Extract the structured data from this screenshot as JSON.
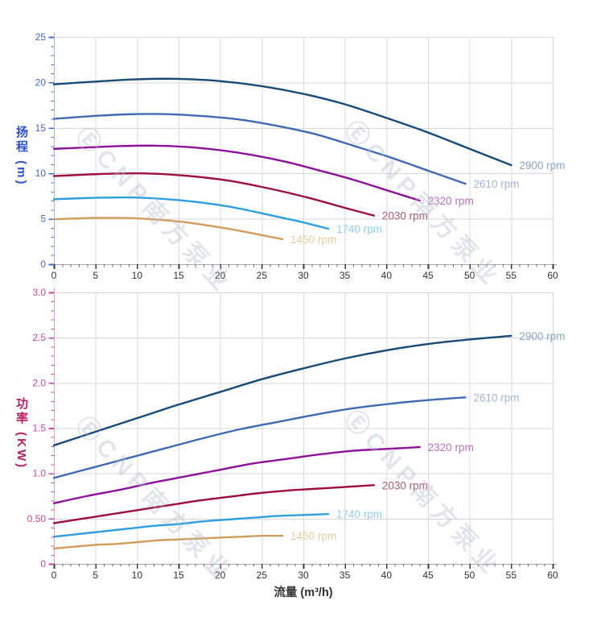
{
  "watermark": {
    "text": "ⒺCNP南方泵业"
  },
  "chart_data": [
    {
      "type": "line",
      "title": "",
      "ylabel": "扬程 (m)",
      "xlabel": "",
      "xlim": [
        0,
        60
      ],
      "ylim": [
        0,
        25
      ],
      "grid": true,
      "legend_position": "end-of-line labels",
      "x_ticks": {
        "values": [
          0,
          5,
          10,
          15,
          20,
          25,
          30,
          35,
          40,
          45,
          50,
          55,
          60
        ],
        "labels": [
          "0",
          "5",
          "10",
          "15",
          "20",
          "25",
          "30",
          "35",
          "40",
          "45",
          "50",
          "55",
          "60"
        ],
        "minor_step": 1
      },
      "y_ticks": {
        "values": [
          0,
          5,
          10,
          15,
          20,
          25
        ],
        "labels": [
          "0",
          "5",
          "10",
          "15",
          "20",
          "25"
        ],
        "minor_step": 1
      },
      "colors": {
        "grid": "#d8d8d8",
        "x_line": "#a8a8a8",
        "x_tick": "#3a3a3a",
        "x_text": "#333333",
        "y_line": "#a8b4d8",
        "y_tick": "#4a68d8",
        "y_text": "#4a68d8",
        "y_title": "#2b50d4"
      },
      "series": [
        {
          "name": "2900 rpm",
          "color": "#164a77",
          "label_color": "#8aa6c6",
          "points": [
            [
              0,
              19.8
            ],
            [
              5,
              20.1
            ],
            [
              10,
              20.35
            ],
            [
              15,
              20.4
            ],
            [
              20,
              20.15
            ],
            [
              25,
              19.6
            ],
            [
              30,
              18.75
            ],
            [
              35,
              17.6
            ],
            [
              40,
              16.1
            ],
            [
              45,
              14.5
            ],
            [
              50,
              12.7
            ],
            [
              55,
              10.9
            ]
          ]
        },
        {
          "name": "2610 rpm",
          "color": "#4269b4",
          "label_color": "#9fb6dc",
          "points": [
            [
              0,
              16.0
            ],
            [
              4.5,
              16.3
            ],
            [
              9,
              16.5
            ],
            [
              13.5,
              16.52
            ],
            [
              18,
              16.3
            ],
            [
              22.5,
              15.9
            ],
            [
              27,
              15.2
            ],
            [
              31.5,
              14.3
            ],
            [
              36,
              13.05
            ],
            [
              40.5,
              11.75
            ],
            [
              45,
              10.3
            ],
            [
              49.5,
              8.85
            ]
          ]
        },
        {
          "name": "2320 rpm",
          "color": "#8e119a",
          "label_color": "#b973c2",
          "points": [
            [
              0,
              12.7
            ],
            [
              4,
              12.85
            ],
            [
              8,
              13.0
            ],
            [
              12,
              13.05
            ],
            [
              16,
              12.9
            ],
            [
              20,
              12.55
            ],
            [
              24,
              12.0
            ],
            [
              28,
              11.25
            ],
            [
              32,
              10.3
            ],
            [
              36,
              9.3
            ],
            [
              40,
              8.15
            ],
            [
              44,
              7.0
            ]
          ]
        },
        {
          "name": "2030 rpm",
          "color": "#9d0f3a",
          "label_color": "#ad5e76",
          "points": [
            [
              0,
              9.7
            ],
            [
              3.5,
              9.85
            ],
            [
              7,
              9.97
            ],
            [
              10.5,
              10.0
            ],
            [
              14,
              9.87
            ],
            [
              17.5,
              9.6
            ],
            [
              21,
              9.2
            ],
            [
              24.5,
              8.6
            ],
            [
              28,
              7.9
            ],
            [
              31.5,
              7.1
            ],
            [
              35,
              6.2
            ],
            [
              38.5,
              5.35
            ]
          ]
        },
        {
          "name": "1740 rpm",
          "color": "#2d9fdf",
          "label_color": "#94cdf0",
          "points": [
            [
              0,
              7.15
            ],
            [
              3,
              7.25
            ],
            [
              6,
              7.33
            ],
            [
              9,
              7.35
            ],
            [
              12,
              7.25
            ],
            [
              15,
              7.05
            ],
            [
              18,
              6.75
            ],
            [
              21,
              6.35
            ],
            [
              24,
              5.8
            ],
            [
              27,
              5.2
            ],
            [
              30,
              4.6
            ],
            [
              33,
              3.9
            ]
          ]
        },
        {
          "name": "1450 rpm",
          "color": "#d09d5e",
          "label_color": "#e3cba4",
          "points": [
            [
              0,
              4.95
            ],
            [
              2.5,
              5.03
            ],
            [
              5,
              5.1
            ],
            [
              7.5,
              5.1
            ],
            [
              10,
              5.05
            ],
            [
              12.5,
              4.9
            ],
            [
              15,
              4.7
            ],
            [
              17.5,
              4.4
            ],
            [
              20,
              4.05
            ],
            [
              22.5,
              3.65
            ],
            [
              25,
              3.2
            ],
            [
              27.5,
              2.75
            ]
          ]
        }
      ]
    },
    {
      "type": "line",
      "title": "",
      "ylabel": "功率 (KW)",
      "xlabel": "流量 (m³/h)",
      "xlim": [
        0,
        60
      ],
      "ylim": [
        0,
        3.0
      ],
      "grid": true,
      "legend_position": "end-of-line labels",
      "x_ticks": {
        "values": [
          0,
          5,
          10,
          15,
          20,
          25,
          30,
          35,
          40,
          45,
          50,
          55,
          60
        ],
        "labels": [
          "0",
          "5",
          "10",
          "15",
          "20",
          "25",
          "30",
          "35",
          "40",
          "45",
          "50",
          "55",
          "60"
        ],
        "minor_step": 1
      },
      "y_ticks": {
        "values": [
          0,
          0.5,
          1.0,
          1.5,
          2.0,
          2.5,
          3.0
        ],
        "labels": [
          "0",
          "0.50",
          "1.0",
          "1.5",
          "2.0",
          "2.5",
          "3.0"
        ],
        "minor_step": 0.1
      },
      "colors": {
        "grid": "#d8d8d8",
        "x_line": "#a8a8a8",
        "x_tick": "#3a3a3a",
        "x_text": "#333333",
        "y_line": "#d9a8c8",
        "y_tick": "#d0489c",
        "y_text": "#d0489c",
        "y_title": "#bb1e63"
      },
      "series": [
        {
          "name": "2900 rpm",
          "color": "#164a77",
          "label_color": "#8aa6c6",
          "points": [
            [
              0,
              1.31
            ],
            [
              5,
              1.46
            ],
            [
              10,
              1.61
            ],
            [
              15,
              1.76
            ],
            [
              20,
              1.9
            ],
            [
              25,
              2.04
            ],
            [
              30,
              2.16
            ],
            [
              35,
              2.27
            ],
            [
              40,
              2.36
            ],
            [
              45,
              2.43
            ],
            [
              50,
              2.48
            ],
            [
              55,
              2.52
            ]
          ]
        },
        {
          "name": "2610 rpm",
          "color": "#4269b4",
          "label_color": "#9fb6dc",
          "points": [
            [
              0,
              0.95
            ],
            [
              4.5,
              1.06
            ],
            [
              9,
              1.17
            ],
            [
              13.5,
              1.28
            ],
            [
              18,
              1.39
            ],
            [
              22.5,
              1.49
            ],
            [
              27,
              1.57
            ],
            [
              31.5,
              1.65
            ],
            [
              36,
              1.72
            ],
            [
              40.5,
              1.77
            ],
            [
              45,
              1.81
            ],
            [
              49.5,
              1.84
            ]
          ]
        },
        {
          "name": "2320 rpm",
          "color": "#8e119a",
          "label_color": "#b973c2",
          "points": [
            [
              0,
              0.67
            ],
            [
              4,
              0.75
            ],
            [
              8,
              0.82
            ],
            [
              12,
              0.9
            ],
            [
              16,
              0.97
            ],
            [
              20,
              1.04
            ],
            [
              24,
              1.11
            ],
            [
              28,
              1.16
            ],
            [
              32,
              1.21
            ],
            [
              36,
              1.25
            ],
            [
              40,
              1.27
            ],
            [
              44,
              1.29
            ]
          ]
        },
        {
          "name": "2030 rpm",
          "color": "#9d0f3a",
          "label_color": "#ad5e76",
          "points": [
            [
              0,
              0.45
            ],
            [
              3.5,
              0.5
            ],
            [
              7,
              0.55
            ],
            [
              10.5,
              0.6
            ],
            [
              14,
              0.65
            ],
            [
              17.5,
              0.7
            ],
            [
              21,
              0.74
            ],
            [
              24.5,
              0.78
            ],
            [
              28,
              0.81
            ],
            [
              31.5,
              0.83
            ],
            [
              35,
              0.85
            ],
            [
              38.5,
              0.87
            ]
          ]
        },
        {
          "name": "1740 rpm",
          "color": "#2d9fdf",
          "label_color": "#94cdf0",
          "points": [
            [
              0,
              0.3
            ],
            [
              3,
              0.33
            ],
            [
              6,
              0.36
            ],
            [
              9,
              0.39
            ],
            [
              12,
              0.42
            ],
            [
              15,
              0.44
            ],
            [
              18,
              0.47
            ],
            [
              21,
              0.49
            ],
            [
              24,
              0.51
            ],
            [
              27,
              0.53
            ],
            [
              30,
              0.54
            ],
            [
              33,
              0.55
            ]
          ]
        },
        {
          "name": "1450 rpm",
          "color": "#d09d5e",
          "label_color": "#e3cba4",
          "points": [
            [
              0,
              0.17
            ],
            [
              2.5,
              0.19
            ],
            [
              5,
              0.21
            ],
            [
              7.5,
              0.22
            ],
            [
              10,
              0.24
            ],
            [
              12.5,
              0.26
            ],
            [
              15,
              0.27
            ],
            [
              17.5,
              0.28
            ],
            [
              20,
              0.29
            ],
            [
              22.5,
              0.3
            ],
            [
              25,
              0.31
            ],
            [
              27.5,
              0.31
            ]
          ]
        }
      ]
    }
  ]
}
